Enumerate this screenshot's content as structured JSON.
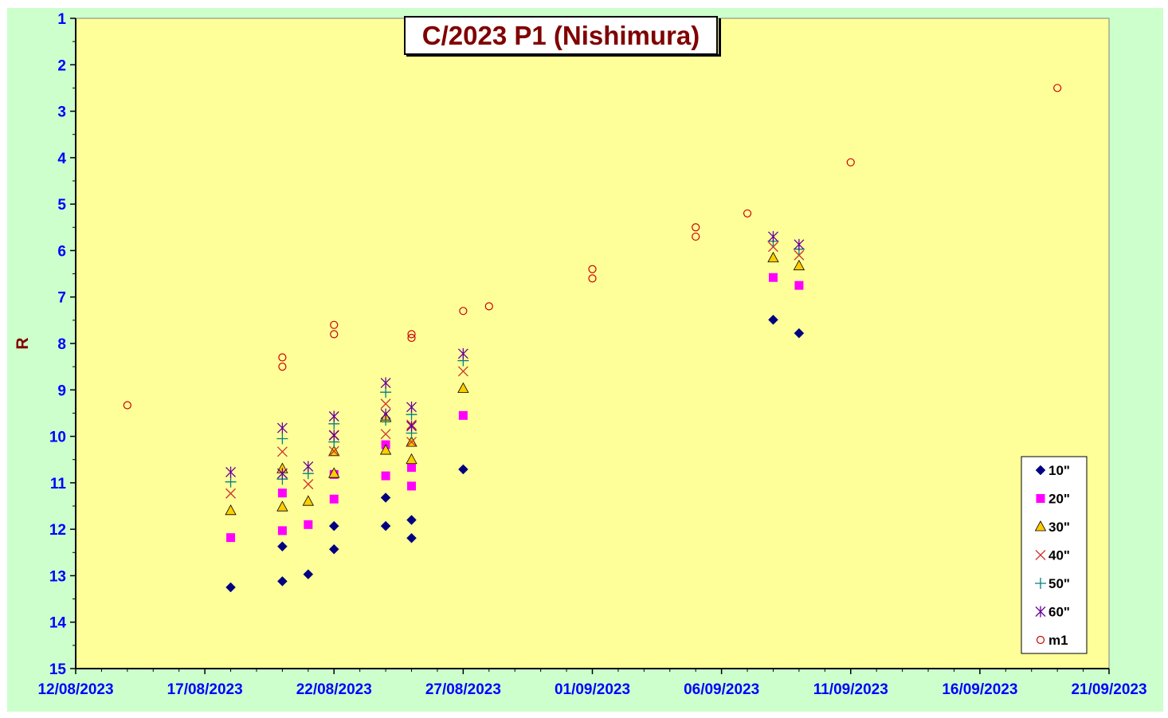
{
  "colors": {
    "outer_background": "#ccffcc",
    "plot_background": "#ffff99",
    "axis": "#000000",
    "tick_label": "#0000ff",
    "title": "#800000",
    "ylabel": "#800000"
  },
  "chart_data": {
    "type": "scatter",
    "title": "C/2023 P1 (Nishimura)",
    "xlabel": "",
    "ylabel": "R",
    "x_type": "date",
    "xlim": [
      "2023-08-12",
      "2023-09-21"
    ],
    "x_tick_labels": [
      "12/08/2023",
      "17/08/2023",
      "22/08/2023",
      "27/08/2023",
      "01/09/2023",
      "06/09/2023",
      "11/09/2023",
      "16/09/2023",
      "21/09/2023"
    ],
    "x_tick_dates": [
      "2023-08-12",
      "2023-08-17",
      "2023-08-22",
      "2023-08-27",
      "2023-09-01",
      "2023-09-06",
      "2023-09-11",
      "2023-09-16",
      "2023-09-21"
    ],
    "ylim": [
      1,
      15
    ],
    "y_reversed": true,
    "y_ticks": [
      1,
      2,
      3,
      4,
      5,
      6,
      7,
      8,
      9,
      10,
      11,
      12,
      13,
      14,
      15
    ],
    "grid": false,
    "legend_position": "bottom-right",
    "series": [
      {
        "name": "10\"",
        "marker": "diamond",
        "color": "#000080",
        "points": [
          {
            "x": "2023-08-18",
            "y": 13.25
          },
          {
            "x": "2023-08-20",
            "y": 13.12
          },
          {
            "x": "2023-08-20",
            "y": 12.37
          },
          {
            "x": "2023-08-21",
            "y": 12.97
          },
          {
            "x": "2023-08-22",
            "y": 11.93
          },
          {
            "x": "2023-08-22",
            "y": 12.43
          },
          {
            "x": "2023-08-24",
            "y": 11.93
          },
          {
            "x": "2023-08-24",
            "y": 11.32
          },
          {
            "x": "2023-08-25",
            "y": 11.8
          },
          {
            "x": "2023-08-25",
            "y": 12.19
          },
          {
            "x": "2023-08-27",
            "y": 10.71
          },
          {
            "x": "2023-09-08",
            "y": 7.49
          },
          {
            "x": "2023-09-09",
            "y": 7.78
          }
        ]
      },
      {
        "name": "20\"",
        "marker": "square",
        "color": "#ff00ff",
        "points": [
          {
            "x": "2023-08-18",
            "y": 12.18
          },
          {
            "x": "2023-08-20",
            "y": 12.03
          },
          {
            "x": "2023-08-20",
            "y": 11.22
          },
          {
            "x": "2023-08-21",
            "y": 11.9
          },
          {
            "x": "2023-08-22",
            "y": 11.35
          },
          {
            "x": "2023-08-22",
            "y": 10.82
          },
          {
            "x": "2023-08-24",
            "y": 10.85
          },
          {
            "x": "2023-08-24",
            "y": 10.18
          },
          {
            "x": "2023-08-25",
            "y": 10.67
          },
          {
            "x": "2023-08-25",
            "y": 11.07
          },
          {
            "x": "2023-08-27",
            "y": 9.55
          },
          {
            "x": "2023-09-08",
            "y": 6.58
          },
          {
            "x": "2023-09-09",
            "y": 6.75
          }
        ]
      },
      {
        "name": "30\"",
        "marker": "triangle",
        "color": "#ffcc00",
        "points": [
          {
            "x": "2023-08-18",
            "y": 11.6
          },
          {
            "x": "2023-08-20",
            "y": 11.52
          },
          {
            "x": "2023-08-20",
            "y": 10.7
          },
          {
            "x": "2023-08-21",
            "y": 11.4
          },
          {
            "x": "2023-08-22",
            "y": 10.8
          },
          {
            "x": "2023-08-22",
            "y": 10.33
          },
          {
            "x": "2023-08-24",
            "y": 10.3
          },
          {
            "x": "2023-08-24",
            "y": 9.6
          },
          {
            "x": "2023-08-25",
            "y": 10.5
          },
          {
            "x": "2023-08-25",
            "y": 10.13
          },
          {
            "x": "2023-08-27",
            "y": 8.97
          },
          {
            "x": "2023-09-08",
            "y": 6.16
          },
          {
            "x": "2023-09-09",
            "y": 6.33
          }
        ]
      },
      {
        "name": "40\"",
        "marker": "x",
        "color": "#cc3333",
        "points": [
          {
            "x": "2023-08-18",
            "y": 11.23
          },
          {
            "x": "2023-08-20",
            "y": 10.33
          },
          {
            "x": "2023-08-20",
            "y": 10.8
          },
          {
            "x": "2023-08-21",
            "y": 11.03
          },
          {
            "x": "2023-08-22",
            "y": 9.97
          },
          {
            "x": "2023-08-22",
            "y": 10.32
          },
          {
            "x": "2023-08-24",
            "y": 9.95
          },
          {
            "x": "2023-08-24",
            "y": 9.3
          },
          {
            "x": "2023-08-25",
            "y": 9.75
          },
          {
            "x": "2023-08-25",
            "y": 10.12
          },
          {
            "x": "2023-08-27",
            "y": 8.6
          },
          {
            "x": "2023-09-08",
            "y": 5.92
          },
          {
            "x": "2023-09-09",
            "y": 6.1
          }
        ]
      },
      {
        "name": "50\"",
        "marker": "plus",
        "color": "#008080",
        "points": [
          {
            "x": "2023-08-18",
            "y": 10.98
          },
          {
            "x": "2023-08-20",
            "y": 10.05
          },
          {
            "x": "2023-08-20",
            "y": 10.92
          },
          {
            "x": "2023-08-21",
            "y": 10.8
          },
          {
            "x": "2023-08-22",
            "y": 9.73
          },
          {
            "x": "2023-08-22",
            "y": 10.12
          },
          {
            "x": "2023-08-24",
            "y": 9.05
          },
          {
            "x": "2023-08-24",
            "y": 9.65
          },
          {
            "x": "2023-08-25",
            "y": 9.53
          },
          {
            "x": "2023-08-25",
            "y": 9.93
          },
          {
            "x": "2023-08-27",
            "y": 8.37
          },
          {
            "x": "2023-09-08",
            "y": 5.8
          },
          {
            "x": "2023-09-09",
            "y": 5.97
          }
        ]
      },
      {
        "name": "60\"",
        "marker": "star",
        "color": "#660099",
        "points": [
          {
            "x": "2023-08-18",
            "y": 10.77
          },
          {
            "x": "2023-08-20",
            "y": 9.82
          },
          {
            "x": "2023-08-20",
            "y": 10.8
          },
          {
            "x": "2023-08-21",
            "y": 10.65
          },
          {
            "x": "2023-08-22",
            "y": 9.57
          },
          {
            "x": "2023-08-22",
            "y": 9.98
          },
          {
            "x": "2023-08-24",
            "y": 8.85
          },
          {
            "x": "2023-08-24",
            "y": 9.52
          },
          {
            "x": "2023-08-25",
            "y": 9.37
          },
          {
            "x": "2023-08-25",
            "y": 9.78
          },
          {
            "x": "2023-08-27",
            "y": 8.22
          },
          {
            "x": "2023-09-08",
            "y": 5.7
          },
          {
            "x": "2023-09-09",
            "y": 5.87
          }
        ]
      },
      {
        "name": "m1",
        "marker": "circle",
        "color": "#cc0000",
        "points": [
          {
            "x": "2023-08-14",
            "y": 9.33
          },
          {
            "x": "2023-08-20",
            "y": 8.3
          },
          {
            "x": "2023-08-20",
            "y": 8.5
          },
          {
            "x": "2023-08-22",
            "y": 7.6
          },
          {
            "x": "2023-08-22",
            "y": 7.8
          },
          {
            "x": "2023-08-25",
            "y": 7.8
          },
          {
            "x": "2023-08-25",
            "y": 7.88
          },
          {
            "x": "2023-08-27",
            "y": 7.3
          },
          {
            "x": "2023-08-28",
            "y": 7.2
          },
          {
            "x": "2023-09-01",
            "y": 6.4
          },
          {
            "x": "2023-09-01",
            "y": 6.6
          },
          {
            "x": "2023-09-05",
            "y": 5.5
          },
          {
            "x": "2023-09-05",
            "y": 5.7
          },
          {
            "x": "2023-09-07",
            "y": 5.2
          },
          {
            "x": "2023-09-11",
            "y": 4.1
          },
          {
            "x": "2023-09-19",
            "y": 2.5
          }
        ]
      }
    ]
  }
}
